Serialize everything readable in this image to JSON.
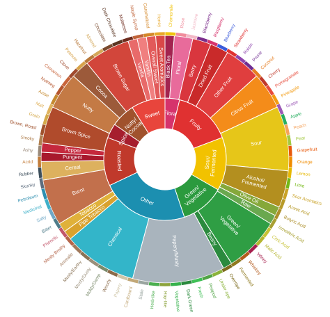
{
  "wheel": {
    "inner": [
      {
        "label": "Floral",
        "span": 3,
        "color": "#d6336c"
      },
      {
        "label": "Fruity",
        "span": 12,
        "color": "#e03131"
      },
      {
        "label": "Sour/\nFermented",
        "span": 11,
        "color": "#f2c200"
      },
      {
        "label": "Green/\nVegetative",
        "span": 9,
        "color": "#2b9a3e"
      },
      {
        "label": "Other",
        "span": 18,
        "color": "#1c8fb0"
      },
      {
        "label": "Roasted",
        "span": 10,
        "color": "#c0392b"
      },
      {
        "label": "Spices",
        "span": 3,
        "color": "#a61e2e"
      },
      {
        "label": "Nutty/\nCocoa",
        "span": 5,
        "color": "#a0522d"
      },
      {
        "label": "Sweet",
        "span": 7,
        "color": "#e8453c"
      }
    ],
    "middle": [
      {
        "label": "Black Tea",
        "span": 1,
        "color": "#a3244f"
      },
      {
        "label": "Floral",
        "span": 2,
        "color": "#e86b9b"
      },
      {
        "label": "Berry",
        "span": 2,
        "color": "#d9363e"
      },
      {
        "label": "Dried Fruit",
        "span": 2,
        "color": "#c92a2a"
      },
      {
        "label": "Other Fruit",
        "span": 4,
        "color": "#e03e3e"
      },
      {
        "label": "Citrus Fruit",
        "span": 4,
        "color": "#f48c1a"
      },
      {
        "label": "Sour",
        "span": 7,
        "color": "#e6c619"
      },
      {
        "label": "Alcohol/\nFremented",
        "span": 4,
        "color": "#b38f1f"
      },
      {
        "label": "Olive Oil",
        "span": 1,
        "color": "#86a83a"
      },
      {
        "label": "Raw",
        "span": 1,
        "color": "#6aa84f"
      },
      {
        "label": "Green/\nVegetative",
        "span": 6,
        "color": "#2f9e44"
      },
      {
        "label": "Beany",
        "span": 1,
        "color": "#2b8a3e"
      },
      {
        "label": "Papery/Musty",
        "span": 10,
        "color": "#a9b4bd"
      },
      {
        "label": "Chemical",
        "span": 8,
        "color": "#33b5c9"
      },
      {
        "label": "Pipe Tobacco",
        "span": 1,
        "color": "#d9a22d"
      },
      {
        "label": "Tobacco",
        "span": 1,
        "color": "#e0b13a"
      },
      {
        "label": "Burnt",
        "span": 5,
        "color": "#c2704c"
      },
      {
        "label": "Cereal",
        "span": 2,
        "color": "#ddb15e"
      },
      {
        "label": "Pungent",
        "span": 1,
        "color": "#a8192d"
      },
      {
        "label": "Pepper",
        "span": 1,
        "color": "#c5283d"
      },
      {
        "label": "Brown Spice",
        "span": 4,
        "color": "#b04b2c"
      },
      {
        "label": "Nutty",
        "span": 4,
        "color": "#c47a45"
      },
      {
        "label": "Cocoa",
        "span": 2,
        "color": "#9c5a3a"
      },
      {
        "label": "Brown Sugar",
        "span": 5,
        "color": "#d2463b"
      },
      {
        "label": "Vanilla",
        "span": 1,
        "color": "#e86a6a"
      },
      {
        "label": "Vanillin",
        "span": 1,
        "color": "#f07f7f"
      },
      {
        "label": "Overall Sweet",
        "span": 1,
        "color": "#e25a5a"
      },
      {
        "label": "Sweet Aromatics",
        "span": 1,
        "color": "#d94848"
      }
    ],
    "outer": [
      {
        "label": "Chamomile",
        "color": "#f1c40f"
      },
      {
        "label": "Rose",
        "color": "#f08c9c"
      },
      {
        "label": "Jasmine",
        "color": "#f2b8c6"
      },
      {
        "label": "Blackberry",
        "color": "#7b2d8b"
      },
      {
        "label": "Raspberry",
        "color": "#d6336c"
      },
      {
        "label": "Blueberry",
        "color": "#3b5bdb"
      },
      {
        "label": "Strawberry",
        "color": "#e03131"
      },
      {
        "label": "Raisin",
        "color": "#8e44ad"
      },
      {
        "label": "Prune",
        "color": "#6f2c91"
      },
      {
        "label": "Coconut",
        "color": "#e67e22"
      },
      {
        "label": "Cherry",
        "color": "#c0392b"
      },
      {
        "label": "Pomegranate",
        "color": "#e74c3c"
      },
      {
        "label": "Pineapple",
        "color": "#f39c12"
      },
      {
        "label": "Grape",
        "color": "#9b59b6"
      },
      {
        "label": "Apple",
        "color": "#27ae60"
      },
      {
        "label": "Peach",
        "color": "#f5a35c"
      },
      {
        "label": "Pear",
        "color": "#a3c940"
      },
      {
        "label": "Grapefruit",
        "color": "#e8590c"
      },
      {
        "label": "Orange",
        "color": "#f08c00"
      },
      {
        "label": "Lemon",
        "color": "#e6b800"
      },
      {
        "label": "Lime",
        "color": "#74b816"
      },
      {
        "label": "Sour Aromatics",
        "color": "#c9a227"
      },
      {
        "label": "Acetic Acid",
        "color": "#b89b2b"
      },
      {
        "label": "Butyric Acid",
        "color": "#ad8f2a"
      },
      {
        "label": "Isovaleric Acid",
        "color": "#a8a032"
      },
      {
        "label": "Citric Acid",
        "color": "#c7c235"
      },
      {
        "label": "Malic Acid",
        "color": "#b5b531"
      },
      {
        "label": "Winey",
        "color": "#a61e4d"
      },
      {
        "label": "Whiskey",
        "color": "#b35c1e"
      },
      {
        "label": "Fermented",
        "color": "#8f7a1f"
      },
      {
        "label": "Overripe",
        "color": "#7d6b1d"
      },
      {
        "label": "Under-ripe",
        "color": "#8bb33b"
      },
      {
        "label": "Peapod",
        "color": "#52a447"
      },
      {
        "label": "Fresh",
        "color": "#40c057"
      },
      {
        "label": "Dark Green",
        "color": "#2b8a3e"
      },
      {
        "label": "Vegetative",
        "color": "#37b24d"
      },
      {
        "label": "Hay-like",
        "color": "#8ca33c"
      },
      {
        "label": "Herb-like",
        "color": "#4caf50"
      },
      {
        "label": "Stale",
        "color": "#9aa5a0"
      },
      {
        "label": "Cardboard",
        "color": "#c2a878"
      },
      {
        "label": "Papery",
        "color": "#cfc6a8"
      },
      {
        "label": "Woody",
        "color": "#8b6b4a"
      },
      {
        "label": "Moldy/Damp",
        "color": "#7a8a6a"
      },
      {
        "label": "Musty/Dusty",
        "color": "#9a8f7a"
      },
      {
        "label": "Musty/Earthy",
        "color": "#8a7356"
      },
      {
        "label": "Animalic",
        "color": "#a0785a"
      },
      {
        "label": "Meaty Brothy",
        "color": "#b5654a"
      },
      {
        "label": "Phenolic",
        "color": "#c2566a"
      },
      {
        "label": "Bitter",
        "color": "#4f7c8a"
      },
      {
        "label": "Salty",
        "color": "#6fa8c7"
      },
      {
        "label": "Medicinal",
        "color": "#3fb0c9"
      },
      {
        "label": "Petroleum",
        "color": "#2e8fb0"
      },
      {
        "label": "Skunky",
        "color": "#5d6d7e"
      },
      {
        "label": "Rubber",
        "color": "#3d4f5c"
      },
      {
        "label": "Acrid",
        "color": "#c27c3a"
      },
      {
        "label": "Ashy",
        "color": "#9a8a7a"
      },
      {
        "label": "Smoky",
        "color": "#b08050"
      },
      {
        "label": "Brown, Roast",
        "color": "#a0522d"
      },
      {
        "label": "Grain",
        "color": "#d4a94a"
      },
      {
        "label": "Malt",
        "color": "#e0b35e"
      },
      {
        "label": "Anise",
        "color": "#c58a30"
      },
      {
        "label": "Nutmeg",
        "color": "#b5562e"
      },
      {
        "label": "Cinnamon",
        "color": "#c8643a"
      },
      {
        "label": "Clove",
        "color": "#a04a2e"
      },
      {
        "label": "Peanuts",
        "color": "#d7a24a"
      },
      {
        "label": "Hazelnut",
        "color": "#b8793a"
      },
      {
        "label": "Almond",
        "color": "#d4a85a"
      },
      {
        "label": "Chocolate",
        "color": "#7a4a2e"
      },
      {
        "label": "Dark Chocolate",
        "color": "#5a3522"
      },
      {
        "label": "Molasses",
        "color": "#6e2c1e"
      },
      {
        "label": "Maple Syrup",
        "color": "#c0643a"
      },
      {
        "label": "Caramelized",
        "color": "#d4882a"
      },
      {
        "label": "Honey",
        "color": "#e8a82a"
      }
    ]
  }
}
